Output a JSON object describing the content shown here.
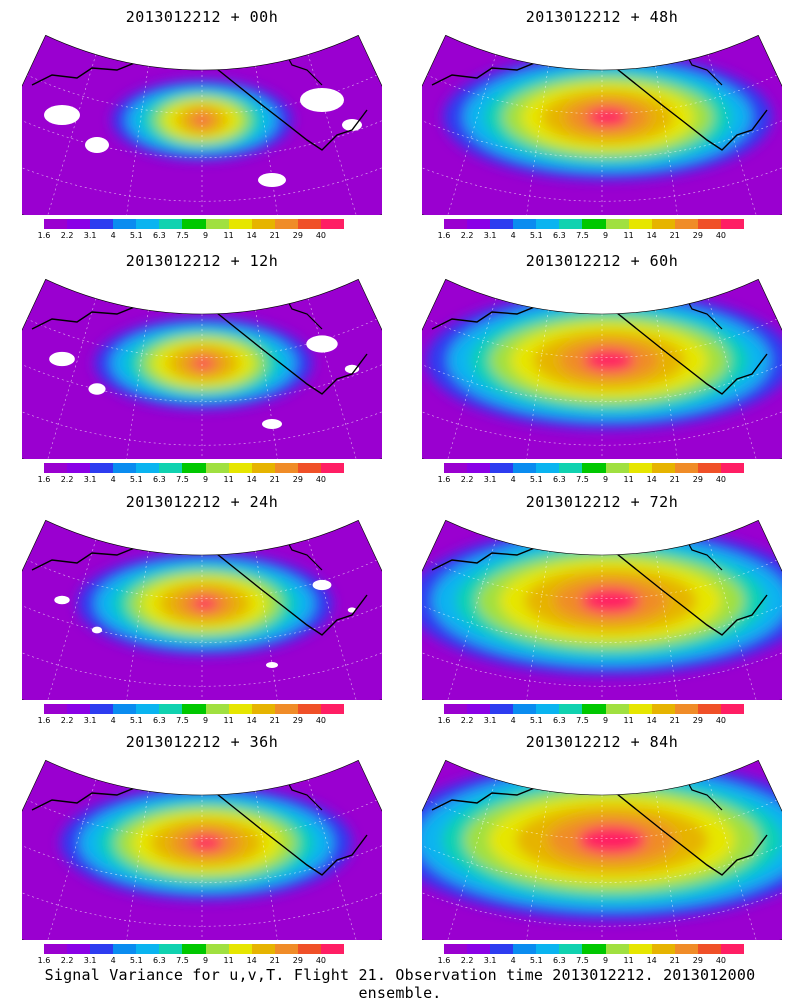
{
  "panels": [
    {
      "title": "2013012212 + 00h",
      "lead": 0
    },
    {
      "title": "2013012212 + 48h",
      "lead": 48
    },
    {
      "title": "2013012212 + 12h",
      "lead": 12
    },
    {
      "title": "2013012212 + 60h",
      "lead": 60
    },
    {
      "title": "2013012212 + 24h",
      "lead": 24
    },
    {
      "title": "2013012212 + 72h",
      "lead": 72
    },
    {
      "title": "2013012212 + 36h",
      "lead": 36
    },
    {
      "title": "2013012212 + 84h",
      "lead": 84
    }
  ],
  "colorbar": {
    "labels": [
      "1.6",
      "2.2",
      "3.1",
      "4",
      "5.1",
      "6.3",
      "7.5",
      "9",
      "11",
      "14",
      "21",
      "29",
      "40"
    ],
    "colors": [
      "#9a00d0",
      "#8a00e6",
      "#2d3cf0",
      "#0a8cf0",
      "#0ab4f0",
      "#10d2b0",
      "#00c800",
      "#a0e040",
      "#e6e600",
      "#e6b400",
      "#f08c28",
      "#f05028",
      "#ff1e64"
    ]
  },
  "footer": "Signal Variance for u,v,T. Flight 21. Observation time 2013012212. 2013012000 ensemble."
}
